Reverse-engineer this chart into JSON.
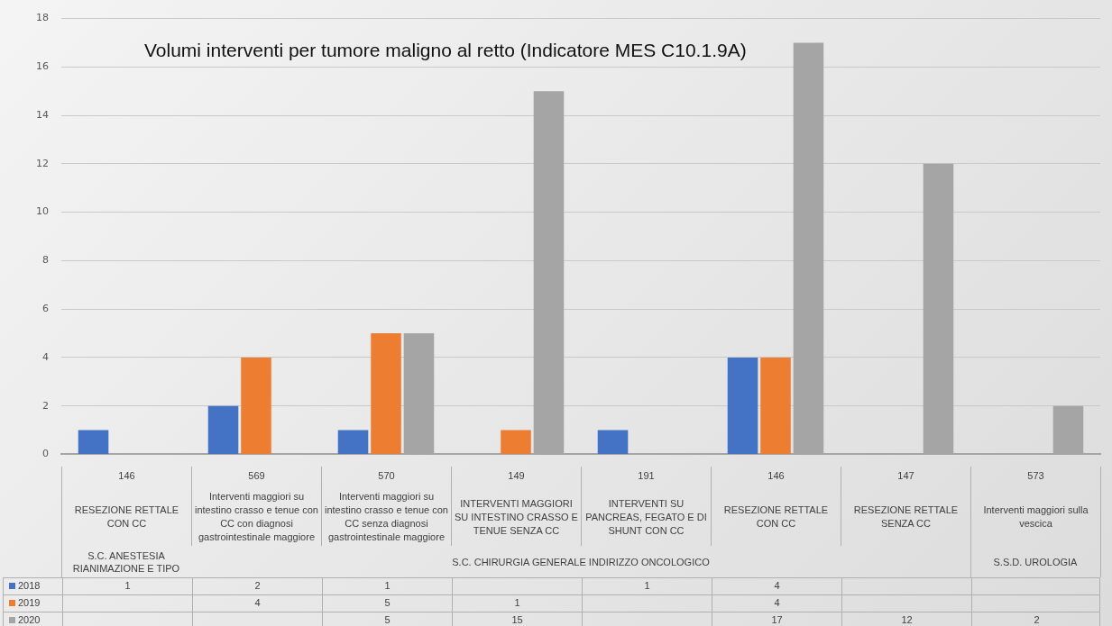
{
  "chart_data": {
    "type": "bar",
    "title": "Volumi interventi per tumore maligno al retto (Indicatore MES C10.1.9A)",
    "categories": [
      "146\nRESEZIONE RETTALE CON CC",
      "569\nInterventi maggiori su intestino crasso e tenue con CC con diagnosi gastrointestinale maggiore",
      "570\nInterventi maggiori su intestino crasso e tenue con CC senza diagnosi gastrointestinale maggiore",
      "149\nINTERVENTI MAGGIORI SU INTESTINO CRASSO E TENUE SENZA CC",
      "191\nINTERVENTI SU PANCREAS, FEGATO E DI SHUNT CON CC",
      "146\nRESEZIONE RETTALE CON CC",
      "147\nRESEZIONE RETTALE SENZA CC",
      "573\nInterventi maggiori sulla vescica"
    ],
    "series": [
      {
        "name": "2018",
        "color": "#4472c4",
        "values": [
          1,
          2,
          1,
          null,
          1,
          4,
          null,
          null
        ]
      },
      {
        "name": "2019",
        "color": "#ed7d31",
        "values": [
          null,
          4,
          5,
          1,
          null,
          4,
          null,
          null
        ]
      },
      {
        "name": "2020",
        "color": "#a5a5a5",
        "values": [
          null,
          null,
          5,
          15,
          null,
          17,
          12,
          2
        ]
      }
    ],
    "annotations": [
      "S.C. ANESTESIA RIANIMAZIONE E TIPO",
      "S.C. CHIRURGIA GENERALE INDIRIZZO ONCOLOGICO",
      "S.S.D. UROLOGIA"
    ],
    "ylim": [
      0,
      18
    ],
    "yticks": [
      0,
      2,
      4,
      6,
      8,
      10,
      12,
      14,
      16,
      18
    ],
    "grid": "y",
    "legend": "bottom",
    "data_labels": true
  }
}
